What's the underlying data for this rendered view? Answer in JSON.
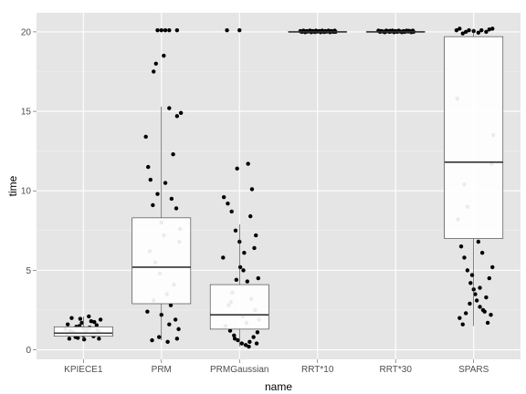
{
  "chart_data": {
    "type": "boxplot",
    "xlabel": "name",
    "ylabel": "time",
    "ylim": [
      -0.6,
      21.2
    ],
    "yticks": [
      0,
      5,
      10,
      15,
      20
    ],
    "grid": true,
    "colors": {
      "panel_bg": "#e5e5e5",
      "grid_major": "#ffffff",
      "grid_minor": "#f2f2f2",
      "box_fill": "#ffffff",
      "box_stroke": "#333333",
      "median": "#333333",
      "point": "#000000"
    },
    "categories": [
      "KPIECE1",
      "PRM",
      "PRMGaussian",
      "RRT*10",
      "RRT*30",
      "SPARS"
    ],
    "boxes": [
      {
        "name": "KPIECE1",
        "min": 0.6,
        "q1": 0.85,
        "median": 1.05,
        "q3": 1.45,
        "max": 2.1
      },
      {
        "name": "PRM",
        "min": 0.6,
        "q1": 2.9,
        "median": 5.2,
        "q3": 8.3,
        "max": 15.3
      },
      {
        "name": "PRMGaussian",
        "min": 0.2,
        "q1": 1.3,
        "median": 2.2,
        "q3": 4.1,
        "max": 7.9
      },
      {
        "name": "RRT*10",
        "min": 20.0,
        "q1": 20.0,
        "median": 20.0,
        "q3": 20.0,
        "max": 20.0
      },
      {
        "name": "RRT*30",
        "min": 20.0,
        "q1": 20.0,
        "median": 20.0,
        "q3": 20.0,
        "max": 20.0
      },
      {
        "name": "SPARS",
        "min": 1.5,
        "q1": 7.0,
        "median": 11.8,
        "q3": 19.7,
        "max": 20.2
      }
    ],
    "points": [
      [
        0.79,
        1.0
      ],
      [
        0.83,
        1.2
      ],
      [
        0.9,
        0.8
      ],
      [
        0.95,
        1.5
      ],
      [
        1.0,
        0.9
      ],
      [
        1.05,
        1.3
      ],
      [
        1.1,
        1.8
      ],
      [
        1.15,
        1.0
      ],
      [
        1.2,
        0.7
      ],
      [
        0.8,
        1.6
      ],
      [
        0.87,
        1.1
      ],
      [
        0.93,
        0.75
      ],
      [
        0.98,
        1.7
      ],
      [
        1.03,
        1.05
      ],
      [
        1.08,
        1.4
      ],
      [
        1.13,
        0.85
      ],
      [
        1.18,
        1.25
      ],
      [
        1.22,
        1.9
      ],
      [
        0.85,
        2.0
      ],
      [
        0.96,
        1.95
      ],
      [
        1.07,
        2.1
      ],
      [
        1.17,
        1.55
      ],
      [
        0.82,
        0.7
      ],
      [
        1.0,
        1.35
      ],
      [
        1.11,
        0.95
      ],
      [
        0.91,
        1.45
      ],
      [
        1.2,
        1.1
      ],
      [
        0.77,
        1.3
      ],
      [
        1.01,
        0.65
      ],
      [
        1.14,
        1.75
      ],
      [
        1.8,
        13.4
      ],
      [
        1.83,
        11.5
      ],
      [
        1.9,
        17.5
      ],
      [
        1.95,
        9.8
      ],
      [
        2.0,
        8.0
      ],
      [
        2.05,
        10.5
      ],
      [
        2.1,
        15.2
      ],
      [
        2.15,
        12.3
      ],
      [
        2.2,
        14.7
      ],
      [
        2.25,
        14.9
      ],
      [
        1.85,
        6.2
      ],
      [
        1.92,
        5.5
      ],
      [
        1.98,
        4.8
      ],
      [
        2.03,
        7.2
      ],
      [
        2.07,
        3.5
      ],
      [
        2.12,
        2.8
      ],
      [
        2.18,
        1.9
      ],
      [
        2.22,
        1.3
      ],
      [
        1.88,
        0.6
      ],
      [
        1.97,
        0.8
      ],
      [
        2.08,
        0.5
      ],
      [
        2.2,
        0.7
      ],
      [
        1.82,
        2.4
      ],
      [
        1.9,
        3.1
      ],
      [
        2.0,
        2.2
      ],
      [
        2.1,
        1.6
      ],
      [
        2.16,
        4.1
      ],
      [
        2.23,
        6.8
      ],
      [
        1.95,
        20.1
      ],
      [
        2.0,
        20.1
      ],
      [
        2.05,
        20.1
      ],
      [
        2.1,
        20.1
      ],
      [
        2.2,
        20.1
      ],
      [
        2.03,
        18.5
      ],
      [
        1.93,
        18.0
      ],
      [
        1.86,
        10.7
      ],
      [
        2.13,
        9.5
      ],
      [
        1.89,
        9.1
      ],
      [
        2.19,
        8.9
      ],
      [
        2.24,
        7.6
      ],
      [
        2.8,
        9.6
      ],
      [
        2.85,
        9.2
      ],
      [
        2.9,
        8.7
      ],
      [
        2.95,
        7.5
      ],
      [
        3.0,
        6.8
      ],
      [
        3.05,
        5.0
      ],
      [
        3.1,
        4.3
      ],
      [
        3.15,
        3.2
      ],
      [
        3.2,
        2.5
      ],
      [
        3.25,
        1.9
      ],
      [
        2.82,
        1.5
      ],
      [
        2.88,
        1.2
      ],
      [
        2.93,
        0.9
      ],
      [
        2.98,
        0.6
      ],
      [
        3.03,
        0.4
      ],
      [
        3.08,
        0.3
      ],
      [
        3.13,
        0.5
      ],
      [
        3.18,
        0.8
      ],
      [
        3.23,
        1.1
      ],
      [
        2.86,
        2.8
      ],
      [
        2.91,
        3.6
      ],
      [
        2.96,
        4.4
      ],
      [
        3.01,
        5.2
      ],
      [
        3.06,
        6.1
      ],
      [
        3.11,
        11.7
      ],
      [
        3.16,
        10.1
      ],
      [
        3.21,
        7.2
      ],
      [
        2.84,
        20.1
      ],
      [
        3.0,
        20.1
      ],
      [
        3.14,
        8.4
      ],
      [
        2.97,
        11.4
      ],
      [
        2.79,
        5.8
      ],
      [
        3.19,
        6.4
      ],
      [
        3.24,
        4.5
      ],
      [
        2.89,
        3.0
      ],
      [
        3.04,
        2.1
      ],
      [
        3.09,
        1.7
      ],
      [
        2.94,
        0.7
      ],
      [
        3.12,
        0.2
      ],
      [
        3.22,
        0.4
      ],
      [
        3.78,
        20.05
      ],
      [
        3.8,
        20.0
      ],
      [
        3.82,
        20.08
      ],
      [
        3.84,
        19.98
      ],
      [
        3.86,
        20.05
      ],
      [
        3.88,
        20.02
      ],
      [
        3.9,
        20.08
      ],
      [
        3.92,
        19.98
      ],
      [
        3.94,
        20.05
      ],
      [
        3.96,
        20.0
      ],
      [
        3.98,
        20.08
      ],
      [
        4.0,
        20.02
      ],
      [
        4.02,
        20.05
      ],
      [
        4.04,
        19.98
      ],
      [
        4.06,
        20.08
      ],
      [
        4.08,
        20.0
      ],
      [
        4.1,
        20.05
      ],
      [
        4.12,
        20.02
      ],
      [
        4.14,
        20.08
      ],
      [
        4.16,
        19.98
      ],
      [
        4.18,
        20.05
      ],
      [
        4.2,
        20.0
      ],
      [
        4.22,
        20.08
      ],
      [
        3.79,
        20.02
      ],
      [
        3.85,
        20.0
      ],
      [
        3.91,
        20.06
      ],
      [
        3.97,
        19.99
      ],
      [
        4.03,
        20.04
      ],
      [
        4.09,
        19.99
      ],
      [
        4.15,
        20.05
      ],
      [
        4.21,
        20.02
      ],
      [
        4.23,
        20.0
      ],
      [
        4.78,
        20.08
      ],
      [
        4.8,
        20.0
      ],
      [
        4.82,
        20.05
      ],
      [
        4.84,
        20.02
      ],
      [
        4.86,
        19.98
      ],
      [
        4.88,
        20.08
      ],
      [
        4.9,
        20.05
      ],
      [
        4.92,
        20.0
      ],
      [
        4.94,
        20.02
      ],
      [
        4.96,
        20.08
      ],
      [
        4.98,
        19.98
      ],
      [
        5.0,
        20.05
      ],
      [
        5.02,
        20.0
      ],
      [
        5.04,
        20.08
      ],
      [
        5.06,
        20.02
      ],
      [
        5.08,
        19.98
      ],
      [
        5.1,
        20.05
      ],
      [
        5.12,
        20.0
      ],
      [
        5.14,
        20.08
      ],
      [
        5.16,
        20.02
      ],
      [
        5.18,
        20.05
      ],
      [
        5.2,
        19.98
      ],
      [
        5.22,
        20.08
      ],
      [
        4.81,
        20.04
      ],
      [
        4.87,
        20.0
      ],
      [
        4.93,
        20.06
      ],
      [
        4.99,
        20.01
      ],
      [
        5.05,
        20.04
      ],
      [
        5.11,
        20.0
      ],
      [
        5.17,
        20.06
      ],
      [
        5.21,
        20.02
      ],
      [
        5.23,
        20.0
      ],
      [
        5.78,
        20.1
      ],
      [
        5.82,
        20.2
      ],
      [
        5.86,
        19.9
      ],
      [
        5.9,
        20.0
      ],
      [
        5.94,
        20.1
      ],
      [
        6.0,
        20.05
      ],
      [
        6.06,
        19.95
      ],
      [
        6.1,
        20.1
      ],
      [
        6.16,
        20.0
      ],
      [
        6.2,
        20.15
      ],
      [
        6.24,
        20.2
      ],
      [
        5.8,
        8.2
      ],
      [
        5.84,
        6.5
      ],
      [
        5.88,
        5.8
      ],
      [
        5.92,
        5.0
      ],
      [
        5.96,
        4.2
      ],
      [
        6.0,
        3.8
      ],
      [
        6.04,
        3.1
      ],
      [
        6.08,
        2.7
      ],
      [
        6.12,
        2.5
      ],
      [
        6.16,
        3.3
      ],
      [
        6.2,
        4.5
      ],
      [
        6.24,
        5.2
      ],
      [
        5.82,
        2.0
      ],
      [
        5.86,
        1.6
      ],
      [
        5.9,
        2.3
      ],
      [
        5.95,
        2.9
      ],
      [
        6.02,
        3.5
      ],
      [
        6.08,
        3.9
      ],
      [
        6.14,
        2.4
      ],
      [
        6.18,
        1.7
      ],
      [
        6.22,
        2.2
      ],
      [
        5.88,
        10.4
      ],
      [
        5.92,
        9.0
      ],
      [
        6.25,
        13.5
      ],
      [
        6.23,
        11.7
      ],
      [
        5.79,
        15.8
      ],
      [
        6.06,
        6.8
      ],
      [
        5.98,
        4.7
      ],
      [
        6.11,
        6.1
      ]
    ]
  }
}
